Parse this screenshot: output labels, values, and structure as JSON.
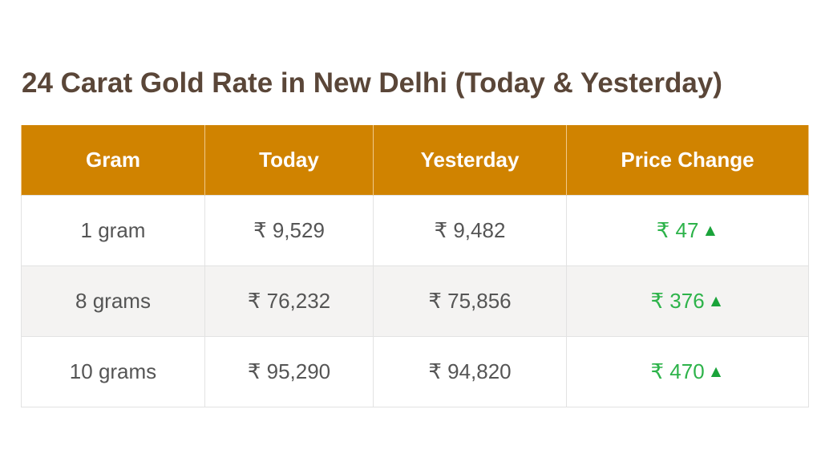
{
  "title": "24 Carat Gold Rate in New Delhi (Today & Yesterday)",
  "table": {
    "headers": [
      "Gram",
      "Today",
      "Yesterday",
      "Price Change"
    ],
    "rows": [
      {
        "gram": "1 gram",
        "today": "₹ 9,529",
        "yesterday": "₹ 9,482",
        "change": "₹ 47",
        "trend": "▲"
      },
      {
        "gram": "8 grams",
        "today": "₹ 76,232",
        "yesterday": "₹ 75,856",
        "change": "₹ 376",
        "trend": "▲"
      },
      {
        "gram": "10 grams",
        "today": "₹ 95,290",
        "yesterday": "₹ 94,820",
        "change": "₹ 470",
        "trend": "▲"
      }
    ]
  },
  "colors": {
    "header_bg": "#d08300",
    "title_text": "#5a4638",
    "positive_change": "#2db34a",
    "alt_row_bg": "#f4f3f2"
  }
}
